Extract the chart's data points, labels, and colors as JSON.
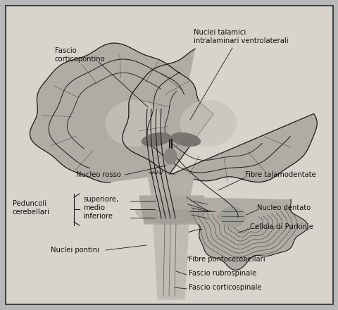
{
  "bg_outer": "#b8b8b8",
  "bg_inner": "#d8d4cc",
  "border_color": "#444444",
  "line_color": "#1a1a1a",
  "text_color": "#111111",
  "fill_brain": "#b0aca4",
  "fill_brain_light": "#c8c4bc",
  "fill_cerebellum": "#a8a4a0",
  "fill_brainstem": "#b4b0a8",
  "fill_dark": "#787470",
  "fill_cord": "#c0bcb4",
  "fontsize": 7.2,
  "labels": {
    "fascio_corticopontino": "Fascio\ncorticopontino",
    "nuclei_talamici": "Nuclei talamici\nintralaminari ventrolaterali",
    "nucleo_rosso": "Nucleo rosso",
    "fibre_talamodentate": "Fibre talamodentate",
    "peduncoli_cerebellari": "Peduncoli\ncerebellari",
    "superiore_medio_inferiore": "superiore,\nmedio\ninferiore",
    "nucleo_dentato": "Nucleo dentato",
    "cellula_purkinje": "Cellula di Purkinje",
    "nuclei_pontini": "Nuclei pontini",
    "fibre_pontocerebellari": "Fibre pontocerebellari",
    "fascio_rubrospinale": "Fascio rubrospinale",
    "fascio_corticospinale": "Fascio corticospinale"
  }
}
